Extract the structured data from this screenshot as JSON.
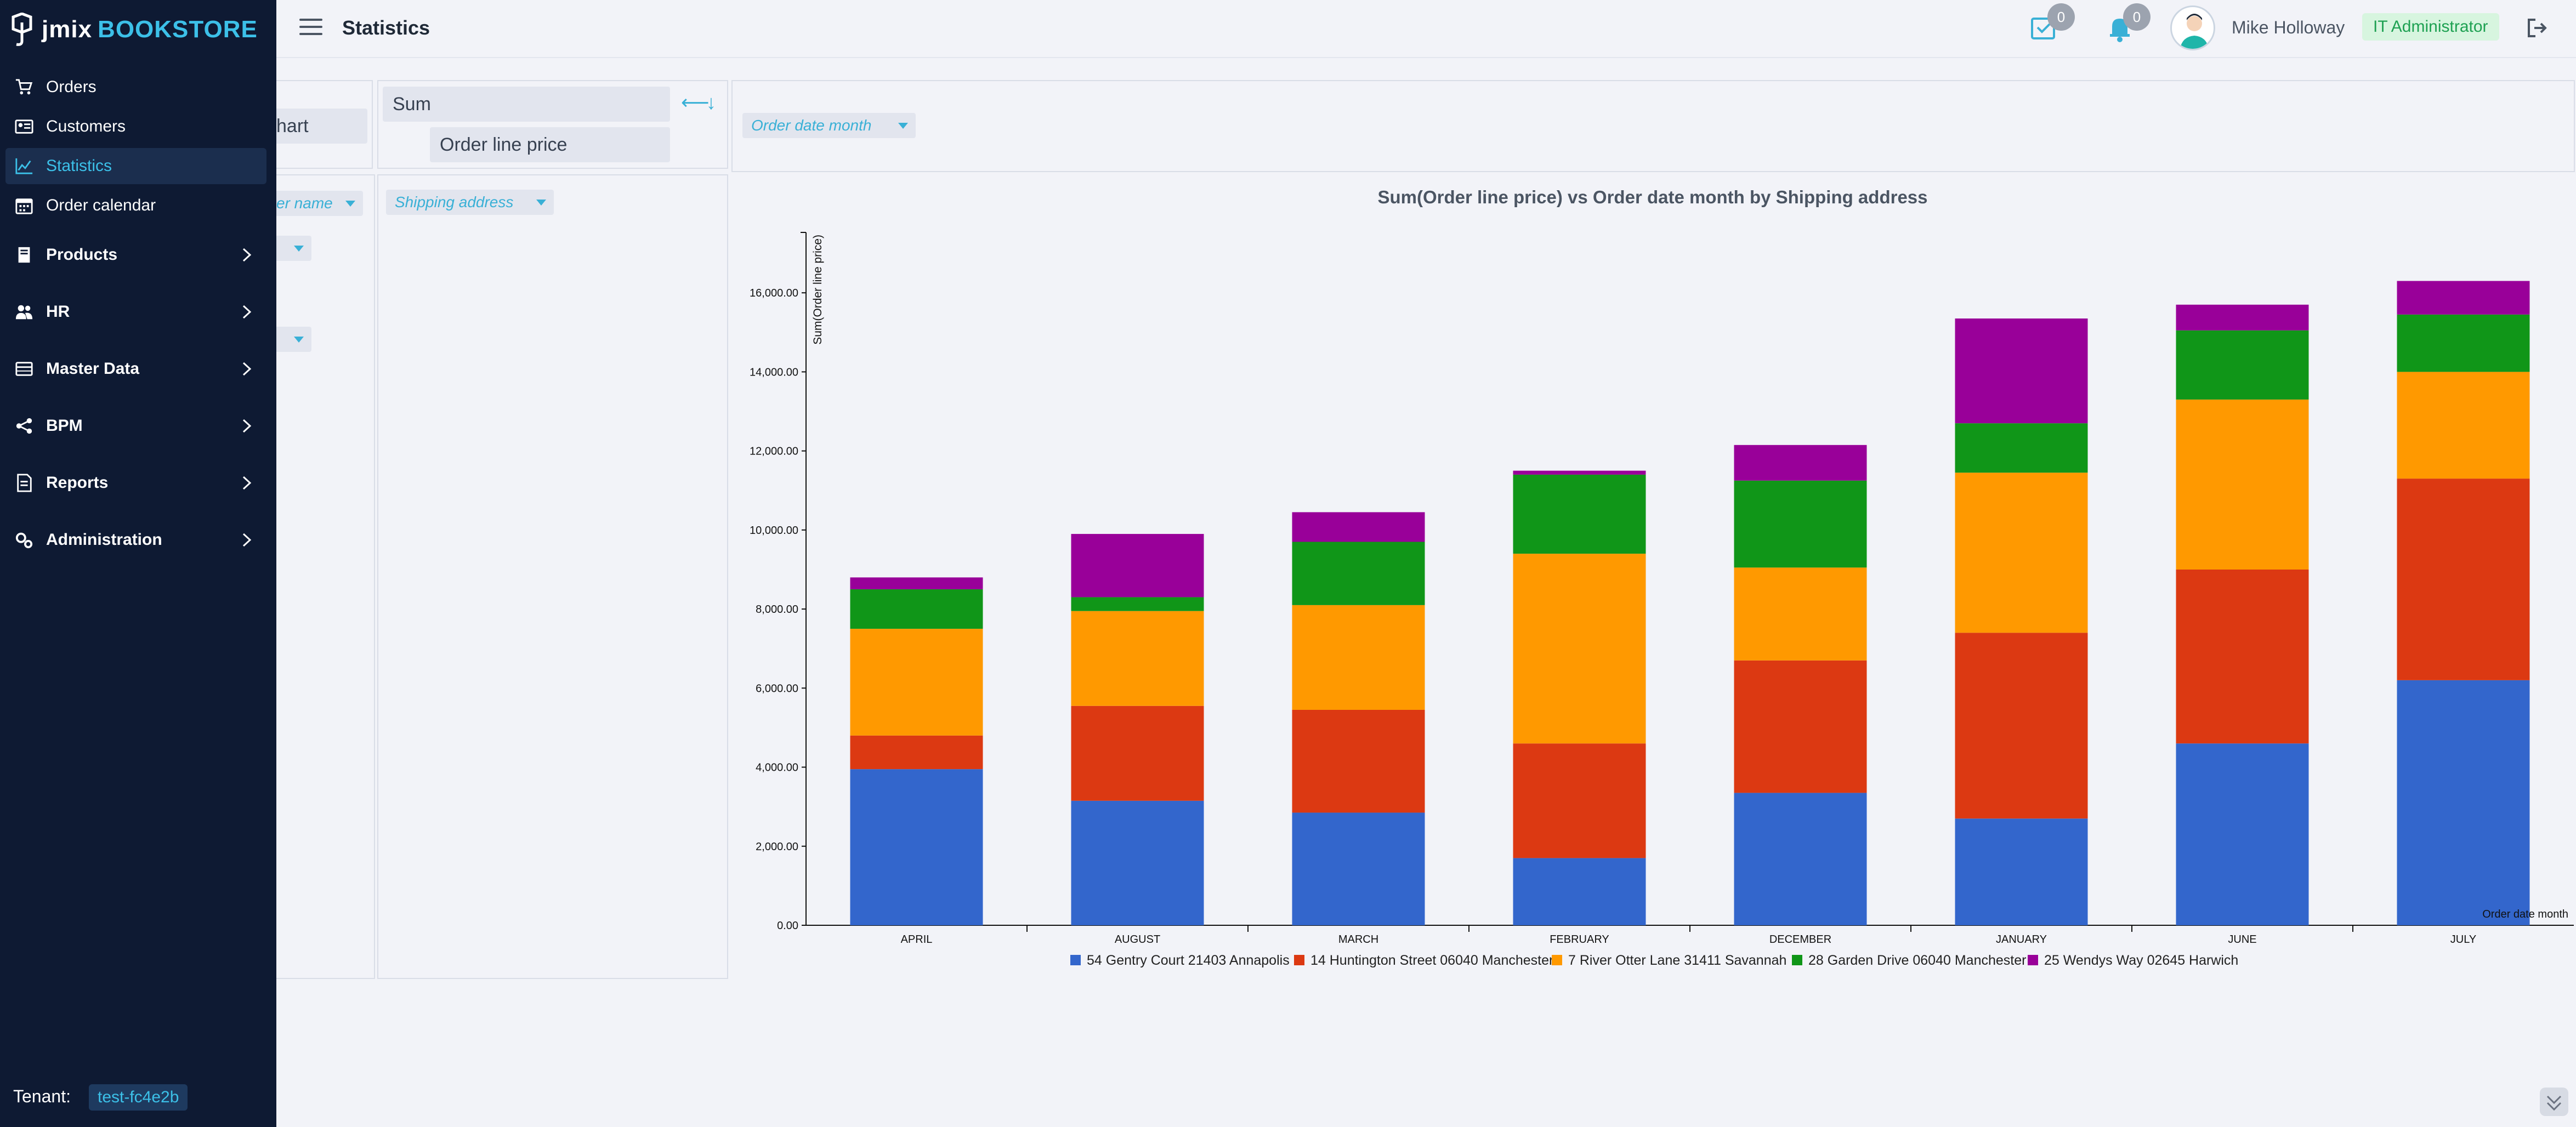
{
  "app": {
    "logo_a": "jmix",
    "logo_b": "BOOKSTORE",
    "page_title": "Statistics"
  },
  "header": {
    "tasks_count": "0",
    "notifications_count": "0",
    "user_name": "Mike Holloway",
    "role": "IT Administrator"
  },
  "sidebar": {
    "items": [
      {
        "label": "Orders",
        "icon": "cart-icon",
        "group": false,
        "active": false
      },
      {
        "label": "Customers",
        "icon": "id-card-icon",
        "group": false,
        "active": false
      },
      {
        "label": "Statistics",
        "icon": "chart-line-icon",
        "group": false,
        "active": true
      },
      {
        "label": "Order calendar",
        "icon": "calendar-icon",
        "group": false,
        "active": false
      },
      {
        "label": "Products",
        "icon": "book-icon",
        "group": true,
        "active": false
      },
      {
        "label": "HR",
        "icon": "users-icon",
        "group": true,
        "active": false
      },
      {
        "label": "Master Data",
        "icon": "table-icon",
        "group": true,
        "active": false
      },
      {
        "label": "BPM",
        "icon": "share-icon",
        "group": true,
        "active": false
      },
      {
        "label": "Reports",
        "icon": "report-icon",
        "group": true,
        "active": false
      },
      {
        "label": "Administration",
        "icon": "gears-icon",
        "group": true,
        "active": false
      }
    ],
    "tenant_label": "Tenant:",
    "tenant_value": "test-fc4e2b"
  },
  "pivot": {
    "renderer_partial": "hart",
    "aggregator": "Sum",
    "aggregator_field": "Order line price",
    "row_attr_partial": "er name",
    "col_attr": "Order date month",
    "row_field": "Shipping address",
    "sort_row_arrows": "⟵",
    "sort_col_arrows": "↓"
  },
  "colors": {
    "series": [
      "#3366cc",
      "#dc3912",
      "#ff9900",
      "#109618",
      "#990099"
    ]
  },
  "chart_data": {
    "type": "bar",
    "stacked": true,
    "title": "Sum(Order line price) vs Order date month by Shipping address",
    "xlabel": "Order date month",
    "ylabel": "Sum(Order line price)",
    "ylim": [
      0,
      17500
    ],
    "yticks": [
      "0.00",
      "2,000.00",
      "4,000.00",
      "6,000.00",
      "8,000.00",
      "10,000.00",
      "12,000.00",
      "14,000.00",
      "16,000.00"
    ],
    "categories": [
      "APRIL",
      "AUGUST",
      "MARCH",
      "FEBRUARY",
      "DECEMBER",
      "JANUARY",
      "JUNE",
      "JULY"
    ],
    "series": [
      {
        "name": "54 Gentry Court 21403 Annapolis",
        "values": [
          3950,
          3150,
          2850,
          1700,
          3350,
          2700,
          4600,
          6200
        ]
      },
      {
        "name": "14 Huntington Street 06040 Manchester",
        "values": [
          850,
          2400,
          2600,
          2900,
          3350,
          4700,
          4400,
          5100
        ]
      },
      {
        "name": "7 River Otter Lane 31411 Savannah",
        "values": [
          2700,
          2400,
          2650,
          4800,
          2350,
          4050,
          4300,
          2700
        ]
      },
      {
        "name": "28 Garden Drive 06040 Manchester",
        "values": [
          1000,
          350,
          1600,
          2000,
          2200,
          1250,
          1750,
          1450
        ]
      },
      {
        "name": "25 Wendys Way 02645 Harwich",
        "values": [
          300,
          1600,
          750,
          100,
          900,
          2650,
          650,
          850
        ]
      }
    ],
    "legend_position": "bottom"
  }
}
